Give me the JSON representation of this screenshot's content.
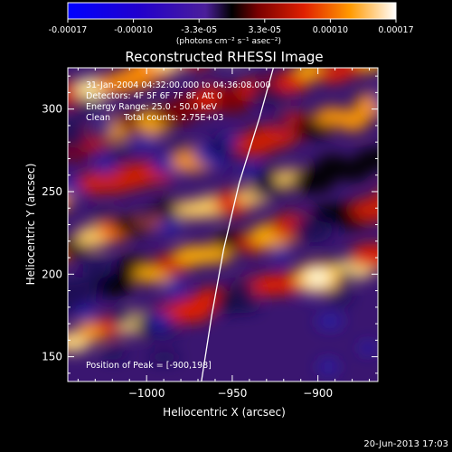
{
  "colorbar": {
    "tick_labels": [
      "-0.00017",
      "-0.00010",
      "-3.3e-05",
      "3.3e-05",
      "0.00010",
      "0.00017"
    ],
    "unit_line": "(photons cm⁻² s⁻¹ asec⁻²)"
  },
  "chart_data": {
    "type": "heatmap",
    "title": "Reconstructed RHESSI Image",
    "xlabel": "Heliocentric X (arcsec)",
    "ylabel": "Heliocentric Y (arcsec)",
    "xlim": [
      -1046,
      -865
    ],
    "ylim": [
      135,
      325
    ],
    "x_ticks": [
      -1000,
      -950,
      -900
    ],
    "x_tick_labels": [
      "−1000",
      "−950",
      "−900"
    ],
    "y_ticks": [
      150,
      200,
      250,
      300
    ],
    "y_tick_labels": [
      "150",
      "200",
      "250",
      "300"
    ],
    "colorbar_range": [
      -0.00017,
      0.00017
    ],
    "annotations": [
      "31-Jan-2004 04:32:00.000 to 04:36:08.000",
      "Detectors: 4F 5F 6F 7F 8F, Att 0",
      "Energy Range: 25.0 - 50.0 keV",
      "Clean     Total counts: 2.75E+03"
    ],
    "peak_label": "Position of Peak = [-900,198]",
    "peak": {
      "x": -900,
      "y": 198
    },
    "limb_curve": [
      [
        -968,
        135
      ],
      [
        -962,
        175
      ],
      [
        -955,
        215
      ],
      [
        -946,
        255
      ],
      [
        -934,
        295
      ],
      [
        -926,
        325
      ]
    ]
  },
  "footer": {
    "timestamp": "20-Jun-2013 17:03"
  }
}
